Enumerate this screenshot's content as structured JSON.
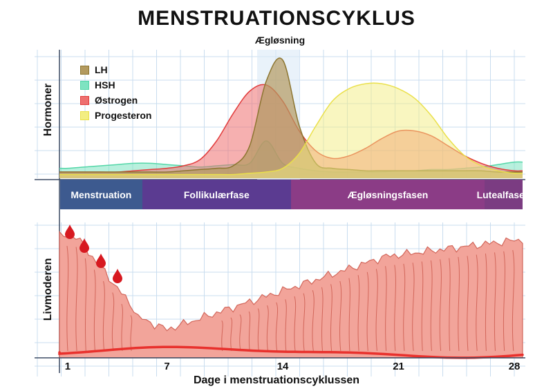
{
  "title": "MENSTRUATIONSCYKLUS",
  "ovulation_label": "Ægløsning",
  "hormones_axis_label": "Hormoner",
  "uterus_axis_label": "Livmoderen",
  "x_axis_label": "Dage i menstruationscyklussen",
  "legend": [
    {
      "label": "LH",
      "color": "#b39a5f"
    },
    {
      "label": "HSH",
      "color": "#7ee3c1"
    },
    {
      "label": "Østrogen",
      "color": "#ee6f6f"
    },
    {
      "label": "Progesteron",
      "color": "#f3ee82"
    }
  ],
  "phases": [
    {
      "label": "Menstruation",
      "color": "#3d5a8f",
      "start_day": 0.5,
      "end_day": 5.5
    },
    {
      "label": "Follikulærfase",
      "color": "#5b3b91",
      "start_day": 5.5,
      "end_day": 14.5
    },
    {
      "label": "Ægløsningsfasen",
      "color": "#8b3c86",
      "start_day": 14.5,
      "end_day": 26.2
    },
    {
      "label": "Lutealfasen",
      "color": "#7b3c82",
      "start_day": 26.2,
      "end_day": 28.5
    }
  ],
  "x_ticks": [
    "1",
    "7",
    "14",
    "21",
    "28"
  ],
  "colors": {
    "grid": "#c8dcef",
    "tissue": "#f2a49a",
    "tissue_edge": "#d2665a",
    "blood": "#d71920",
    "vessel": "#e8312d"
  },
  "chart_data": {
    "type": "area",
    "x": [
      1,
      2,
      3,
      4,
      5,
      6,
      7,
      8,
      9,
      10,
      11,
      12,
      13,
      14,
      15,
      16,
      17,
      18,
      19,
      20,
      21,
      22,
      23,
      24,
      25,
      26,
      27,
      28
    ],
    "series": [
      {
        "name": "HSH",
        "values": [
          8,
          9,
          10,
          11,
          12,
          12,
          11,
          10,
          9,
          10,
          11,
          12,
          30,
          12,
          8,
          6,
          5,
          5,
          5,
          5,
          6,
          6,
          7,
          7,
          8,
          9,
          11,
          13
        ]
      },
      {
        "name": "Østrogen",
        "values": [
          5,
          5,
          5,
          5,
          6,
          7,
          8,
          10,
          15,
          30,
          52,
          70,
          75,
          62,
          38,
          22,
          16,
          18,
          24,
          32,
          38,
          38,
          34,
          26,
          18,
          12,
          8,
          6
        ]
      },
      {
        "name": "LH",
        "values": [
          5,
          5,
          5,
          5,
          5,
          5,
          5,
          6,
          7,
          8,
          10,
          26,
          78,
          95,
          42,
          12,
          8,
          7,
          6,
          6,
          6,
          6,
          6,
          6,
          6,
          6,
          5,
          5
        ]
      },
      {
        "name": "Progesteron",
        "values": [
          3,
          3,
          3,
          3,
          3,
          3,
          3,
          3,
          3,
          3,
          3,
          4,
          5,
          8,
          20,
          42,
          62,
          72,
          76,
          76,
          72,
          64,
          50,
          32,
          18,
          10,
          6,
          4
        ]
      }
    ],
    "ylim": [
      0,
      100
    ],
    "xlim": [
      0.5,
      28.5
    ]
  }
}
